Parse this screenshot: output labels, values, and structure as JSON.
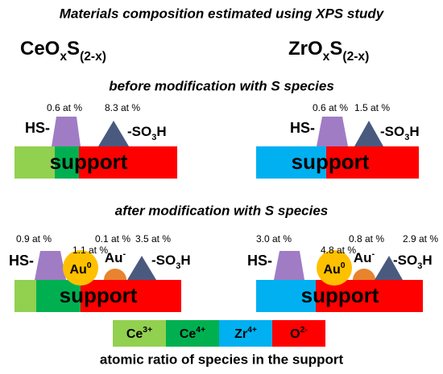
{
  "title": "Materials composition estimated using XPS study",
  "compounds": [
    [
      "CeO",
      "x",
      "S",
      "(2-x)"
    ],
    [
      "ZrO",
      "x",
      "S",
      "(2-x)"
    ]
  ],
  "before": {
    "heading": "before modification with S species",
    "panels": [
      {
        "hs": "HS-",
        "hs_amount": "0.6 at %",
        "so3h": [
          "-SO",
          "3",
          "H"
        ],
        "so3h_amount": "8.3 at %",
        "support": "support"
      },
      {
        "hs": "HS-",
        "hs_amount": "0.6 at %",
        "so3h": [
          "-SO",
          "3",
          "H"
        ],
        "so3h_amount": "1.5 at %",
        "support": "support"
      }
    ]
  },
  "after": {
    "heading": "after modification with S species",
    "panels": [
      {
        "hs": "HS-",
        "hs_amount": "0.9 at %",
        "au0": [
          "Au",
          "0"
        ],
        "au0_amount": "1.1 at %",
        "au_minus": [
          "Au",
          "-"
        ],
        "au_minus_amount": "0.1 at %",
        "so3h": [
          "-SO",
          "3",
          "H"
        ],
        "so3h_amount": "3.5 at %",
        "support": "support"
      },
      {
        "hs": "HS-",
        "hs_amount": "3.0 at %",
        "au0": [
          "Au",
          "0"
        ],
        "au0_amount": "4.8 at %",
        "au_minus": [
          "Au",
          "-"
        ],
        "au_minus_amount": "0.8 at %",
        "so3h": [
          "-SO",
          "3",
          "H"
        ],
        "so3h_amount": "2.9 at %",
        "support": "support"
      }
    ]
  },
  "legend": {
    "items": [
      [
        "Ce",
        "3+"
      ],
      [
        "Ce",
        "4+"
      ],
      [
        "Zr",
        "4+"
      ],
      [
        "O",
        "2-"
      ]
    ],
    "caption": "atomic ratio of species in the support"
  }
}
